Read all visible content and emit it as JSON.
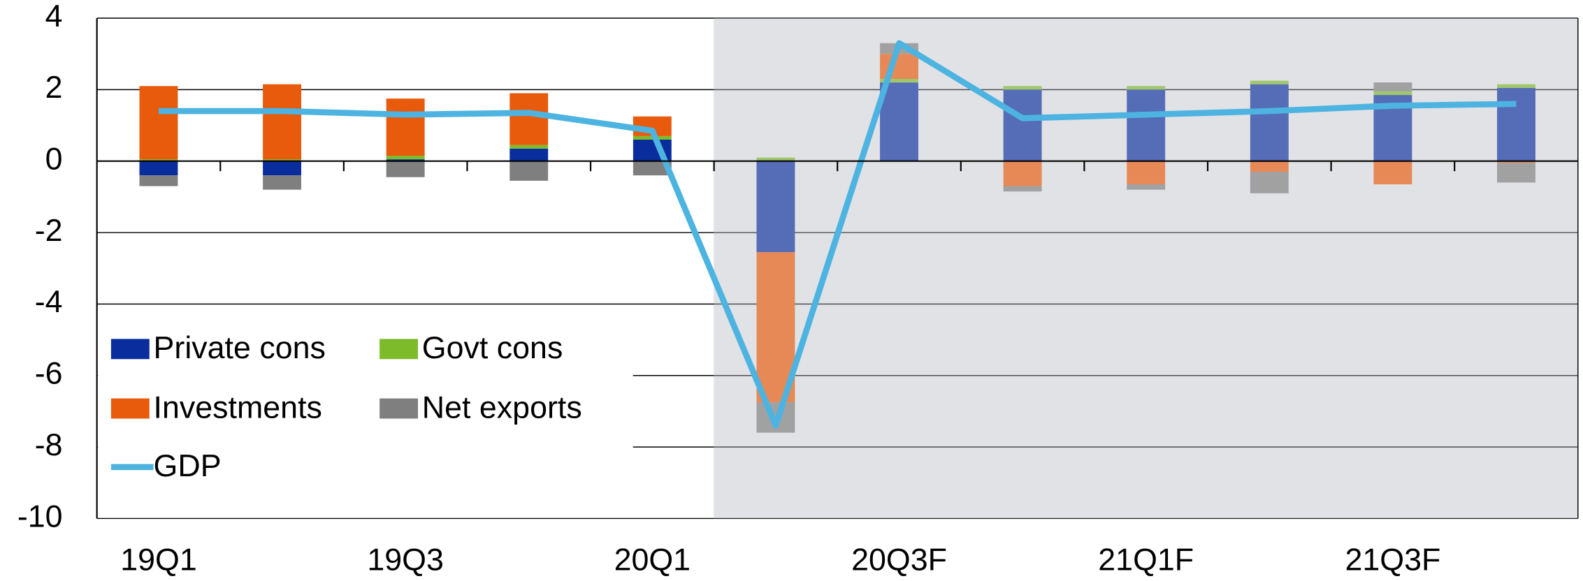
{
  "chart_data": {
    "type": "bar",
    "stacked": true,
    "categories": [
      "19Q1",
      null,
      "19Q3",
      null,
      "20Q1",
      null,
      "20Q3F",
      null,
      "21Q1F",
      null,
      "21Q3F",
      null
    ],
    "series": [
      {
        "name": "Private cons",
        "color": "#0a2d9e",
        "values": [
          -0.4,
          -0.4,
          0.05,
          0.35,
          0.6,
          -2.55,
          2.2,
          2.0,
          2.0,
          2.15,
          1.85,
          2.05
        ]
      },
      {
        "name": "Govt cons",
        "color": "#7dbb2a",
        "values": [
          0.05,
          0.05,
          0.1,
          0.1,
          0.1,
          0.1,
          0.1,
          0.1,
          0.1,
          0.1,
          0.1,
          0.1
        ]
      },
      {
        "name": "Investments",
        "color": "#e85a0c",
        "values": [
          2.05,
          2.1,
          1.6,
          1.45,
          0.55,
          -4.2,
          0.7,
          -0.7,
          -0.65,
          -0.3,
          -0.65,
          -0.05
        ]
      },
      {
        "name": "Net exports",
        "color": "#7f7f7f",
        "values": [
          -0.3,
          -0.4,
          -0.45,
          -0.55,
          -0.4,
          -0.85,
          0.3,
          -0.15,
          -0.15,
          -0.6,
          0.25,
          -0.55
        ]
      },
      {
        "name": "GDP",
        "type": "line",
        "color": "#4db3e0",
        "values": [
          1.4,
          1.4,
          1.3,
          1.35,
          0.85,
          -7.4,
          3.3,
          1.2,
          1.3,
          1.4,
          1.55,
          1.6
        ]
      }
    ],
    "ylim": [
      -10,
      4
    ],
    "yticks": [
      -10,
      -8,
      -6,
      -4,
      -2,
      0,
      2,
      4
    ],
    "grid": true,
    "legend": "left"
  }
}
